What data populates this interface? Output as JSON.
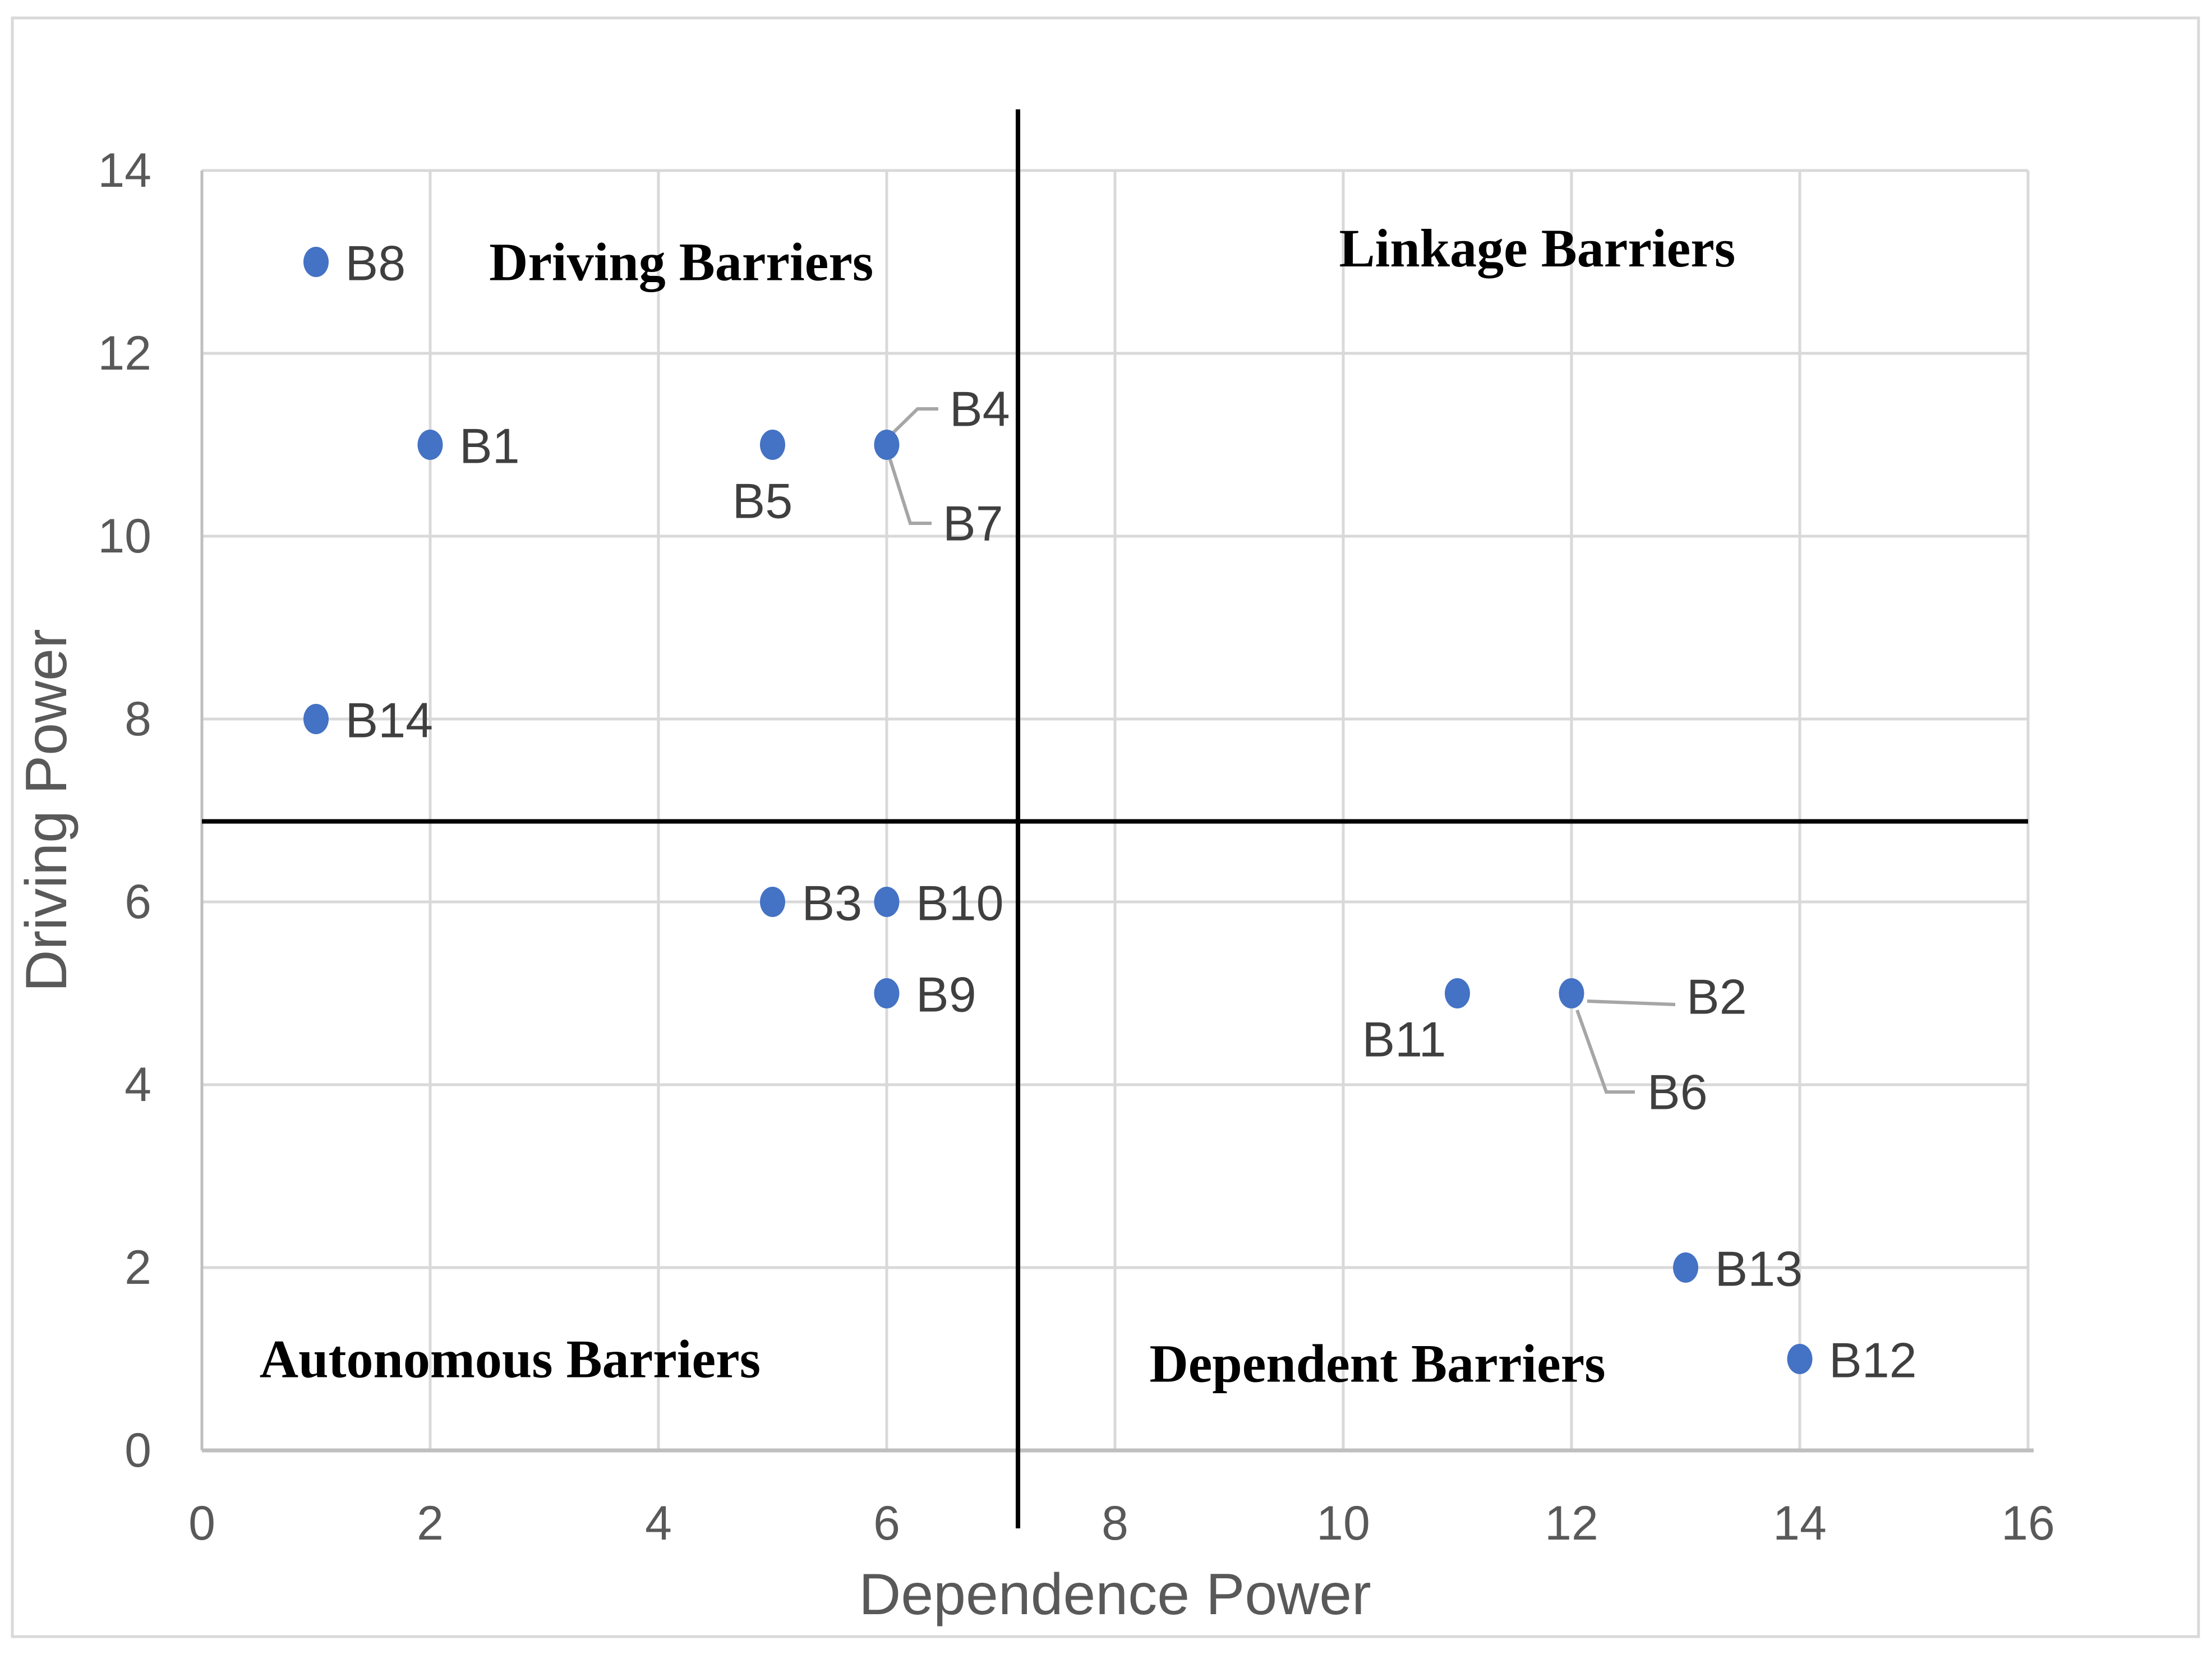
{
  "figure": {
    "background": "#FFFFFF",
    "border_color": "#D9D9D9"
  },
  "chart_data": {
    "type": "scatter",
    "title": "",
    "xlabel": "Dependence Power",
    "ylabel": "Driving Power",
    "xlim": [
      0,
      16
    ],
    "ylim": [
      0,
      14
    ],
    "x_ticks": [
      0,
      2,
      4,
      6,
      8,
      10,
      12,
      14,
      16
    ],
    "y_ticks": [
      0,
      2,
      4,
      6,
      8,
      10,
      12,
      14
    ],
    "grid": true,
    "legend": "none",
    "series_color": "#4472C4",
    "quadrant_dividers": {
      "x": 7.15,
      "y": 6.88
    },
    "quadrant_labels": [
      {
        "id": "driving",
        "text": "Driving Barriers",
        "x": 4.2,
        "y": 13.0
      },
      {
        "id": "linkage",
        "text": "Linkage Barriers",
        "x": 11.7,
        "y": 13.15
      },
      {
        "id": "autonomous",
        "text": "Autonomous Barriers",
        "x": 2.7,
        "y": 1.0
      },
      {
        "id": "dependent",
        "text": "Dependent Barriers",
        "x": 10.3,
        "y": 0.95
      }
    ],
    "points": [
      {
        "label": "B8",
        "x": 1,
        "y": 13,
        "placement": "right"
      },
      {
        "label": "B1",
        "x": 2,
        "y": 11,
        "placement": "right"
      },
      {
        "label": "B5",
        "x": 5,
        "y": 11,
        "placement": "below"
      },
      {
        "label": "B4",
        "x": 6,
        "y": 11,
        "placement": "leader-up"
      },
      {
        "label": "B7",
        "x": 6,
        "y": 11,
        "placement": "leader-down",
        "duplicate_marker": true
      },
      {
        "label": "B14",
        "x": 1,
        "y": 8,
        "placement": "right"
      },
      {
        "label": "B3",
        "x": 5,
        "y": 6,
        "placement": "right"
      },
      {
        "label": "B10",
        "x": 6,
        "y": 6,
        "placement": "right"
      },
      {
        "label": "B9",
        "x": 6,
        "y": 5,
        "placement": "right"
      },
      {
        "label": "B11",
        "x": 11,
        "y": 5,
        "placement": "below-left"
      },
      {
        "label": "B2",
        "x": 12,
        "y": 5,
        "placement": "leader-right"
      },
      {
        "label": "B6",
        "x": 12,
        "y": 5,
        "placement": "leader-down2",
        "duplicate_marker": true
      },
      {
        "label": "B13",
        "x": 13,
        "y": 2,
        "placement": "right"
      },
      {
        "label": "B12",
        "x": 14,
        "y": 1,
        "placement": "right"
      }
    ],
    "colors": {
      "gridline": "#D9D9D9",
      "axis_line": "#BFBFBF",
      "divider": "#000000",
      "leader": "#A6A6A6",
      "tick_label": "#595959",
      "point_label": "#3F3F3F",
      "quadrant_label": "#000000",
      "axis_title": "#595959"
    }
  }
}
